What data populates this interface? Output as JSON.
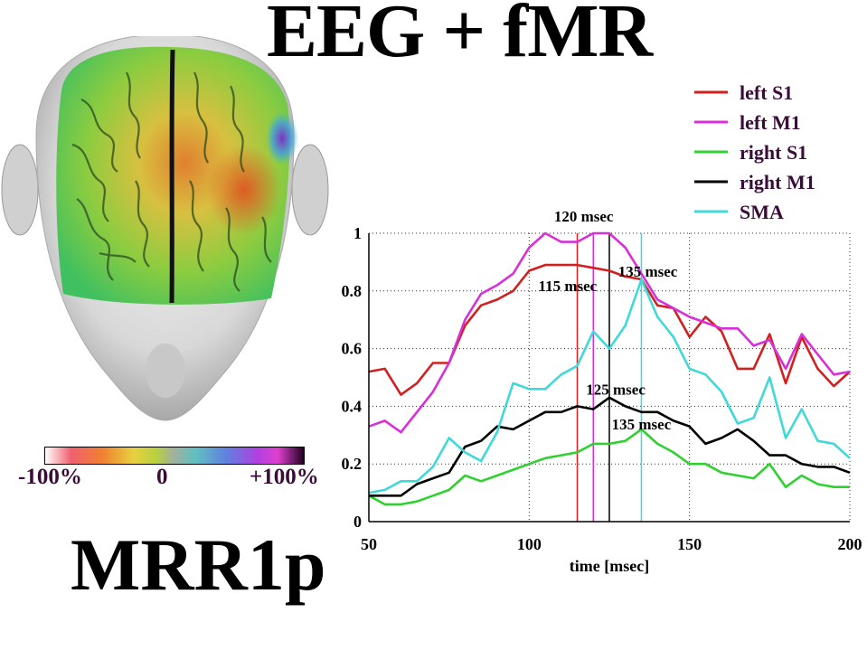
{
  "title": "EEG + fMR",
  "subtitle": "MRR1p",
  "colorbar": {
    "min_label": "-100%",
    "mid_label": "0",
    "max_label": "+100%"
  },
  "chart_data": {
    "type": "line",
    "xlabel": "time [msec]",
    "ylabel": "",
    "xlim": [
      50,
      200
    ],
    "ylim": [
      0,
      1
    ],
    "xticks": [
      50,
      100,
      150,
      200
    ],
    "yticks": [
      0,
      0.2,
      0.4,
      0.6,
      0.8,
      1
    ],
    "ytick_labels": [
      "0",
      "0.2",
      "0.4",
      "0.6",
      "0.8",
      "1"
    ],
    "grid": true,
    "legend_position": "top-right",
    "series": [
      {
        "name": "left S1",
        "color": "#d02020",
        "x": [
          50,
          55,
          60,
          65,
          70,
          75,
          80,
          85,
          90,
          95,
          100,
          105,
          110,
          115,
          120,
          125,
          130,
          135,
          140,
          145,
          150,
          155,
          160,
          165,
          170,
          175,
          180,
          185,
          190,
          195,
          200
        ],
        "y": [
          0.52,
          0.53,
          0.44,
          0.48,
          0.55,
          0.55,
          0.68,
          0.75,
          0.77,
          0.8,
          0.87,
          0.89,
          0.89,
          0.89,
          0.88,
          0.87,
          0.85,
          0.84,
          0.75,
          0.74,
          0.64,
          0.71,
          0.66,
          0.53,
          0.53,
          0.65,
          0.48,
          0.64,
          0.53,
          0.47,
          0.52
        ]
      },
      {
        "name": "left M1",
        "color": "#d830d8",
        "x": [
          50,
          55,
          60,
          65,
          70,
          75,
          80,
          85,
          90,
          95,
          100,
          105,
          110,
          115,
          120,
          125,
          130,
          135,
          140,
          145,
          150,
          155,
          160,
          165,
          170,
          175,
          180,
          185,
          190,
          195,
          200
        ],
        "y": [
          0.33,
          0.35,
          0.31,
          0.38,
          0.45,
          0.55,
          0.7,
          0.79,
          0.82,
          0.86,
          0.95,
          1.0,
          0.97,
          0.97,
          1.0,
          1.0,
          0.95,
          0.86,
          0.77,
          0.74,
          0.71,
          0.69,
          0.67,
          0.67,
          0.61,
          0.63,
          0.53,
          0.65,
          0.58,
          0.51,
          0.52
        ]
      },
      {
        "name": "right S1",
        "color": "#30d030",
        "x": [
          50,
          55,
          60,
          65,
          70,
          75,
          80,
          85,
          90,
          95,
          100,
          105,
          110,
          115,
          120,
          125,
          130,
          135,
          140,
          145,
          150,
          155,
          160,
          165,
          170,
          175,
          180,
          185,
          190,
          195,
          200
        ],
        "y": [
          0.09,
          0.06,
          0.06,
          0.07,
          0.09,
          0.11,
          0.16,
          0.14,
          0.16,
          0.18,
          0.2,
          0.22,
          0.23,
          0.24,
          0.27,
          0.27,
          0.28,
          0.32,
          0.27,
          0.24,
          0.2,
          0.2,
          0.17,
          0.16,
          0.15,
          0.2,
          0.12,
          0.16,
          0.13,
          0.12,
          0.12
        ]
      },
      {
        "name": "right M1",
        "color": "#000000",
        "x": [
          50,
          55,
          60,
          65,
          70,
          75,
          80,
          85,
          90,
          95,
          100,
          105,
          110,
          115,
          120,
          125,
          130,
          135,
          140,
          145,
          150,
          155,
          160,
          165,
          170,
          175,
          180,
          185,
          190,
          195,
          200
        ],
        "y": [
          0.09,
          0.09,
          0.09,
          0.13,
          0.15,
          0.17,
          0.26,
          0.28,
          0.33,
          0.32,
          0.35,
          0.38,
          0.38,
          0.4,
          0.39,
          0.43,
          0.4,
          0.38,
          0.38,
          0.35,
          0.33,
          0.27,
          0.29,
          0.32,
          0.28,
          0.23,
          0.23,
          0.2,
          0.19,
          0.19,
          0.17
        ]
      },
      {
        "name": "SMA",
        "color": "#40d8d8",
        "x": [
          50,
          55,
          60,
          65,
          70,
          75,
          80,
          85,
          90,
          95,
          100,
          105,
          110,
          115,
          120,
          125,
          130,
          135,
          140,
          145,
          150,
          155,
          160,
          165,
          170,
          175,
          180,
          185,
          190,
          195,
          200
        ],
        "y": [
          0.1,
          0.11,
          0.14,
          0.14,
          0.19,
          0.29,
          0.24,
          0.21,
          0.31,
          0.48,
          0.46,
          0.46,
          0.51,
          0.54,
          0.66,
          0.6,
          0.68,
          0.84,
          0.71,
          0.64,
          0.53,
          0.51,
          0.45,
          0.34,
          0.36,
          0.5,
          0.29,
          0.39,
          0.28,
          0.27,
          0.22
        ]
      }
    ],
    "markers": [
      {
        "x": 115,
        "color": "#d02020",
        "label": "115 msec",
        "label_x": 112,
        "label_y": 0.8
      },
      {
        "x": 120,
        "color": "#d830d8",
        "label": "120 msec",
        "label_x": 117,
        "label_y": 1.04
      },
      {
        "x": 125,
        "color": "#000000",
        "label": "125 msec",
        "label_x": 127,
        "label_y": 0.44
      },
      {
        "x": 135,
        "color": "#40d8d8",
        "label": "135 msec",
        "label_x": 137,
        "label_y": 0.85
      },
      {
        "x": 135,
        "color": "#40d8d8",
        "label": "135 msec",
        "label_x": 135,
        "label_y": 0.32
      }
    ]
  }
}
